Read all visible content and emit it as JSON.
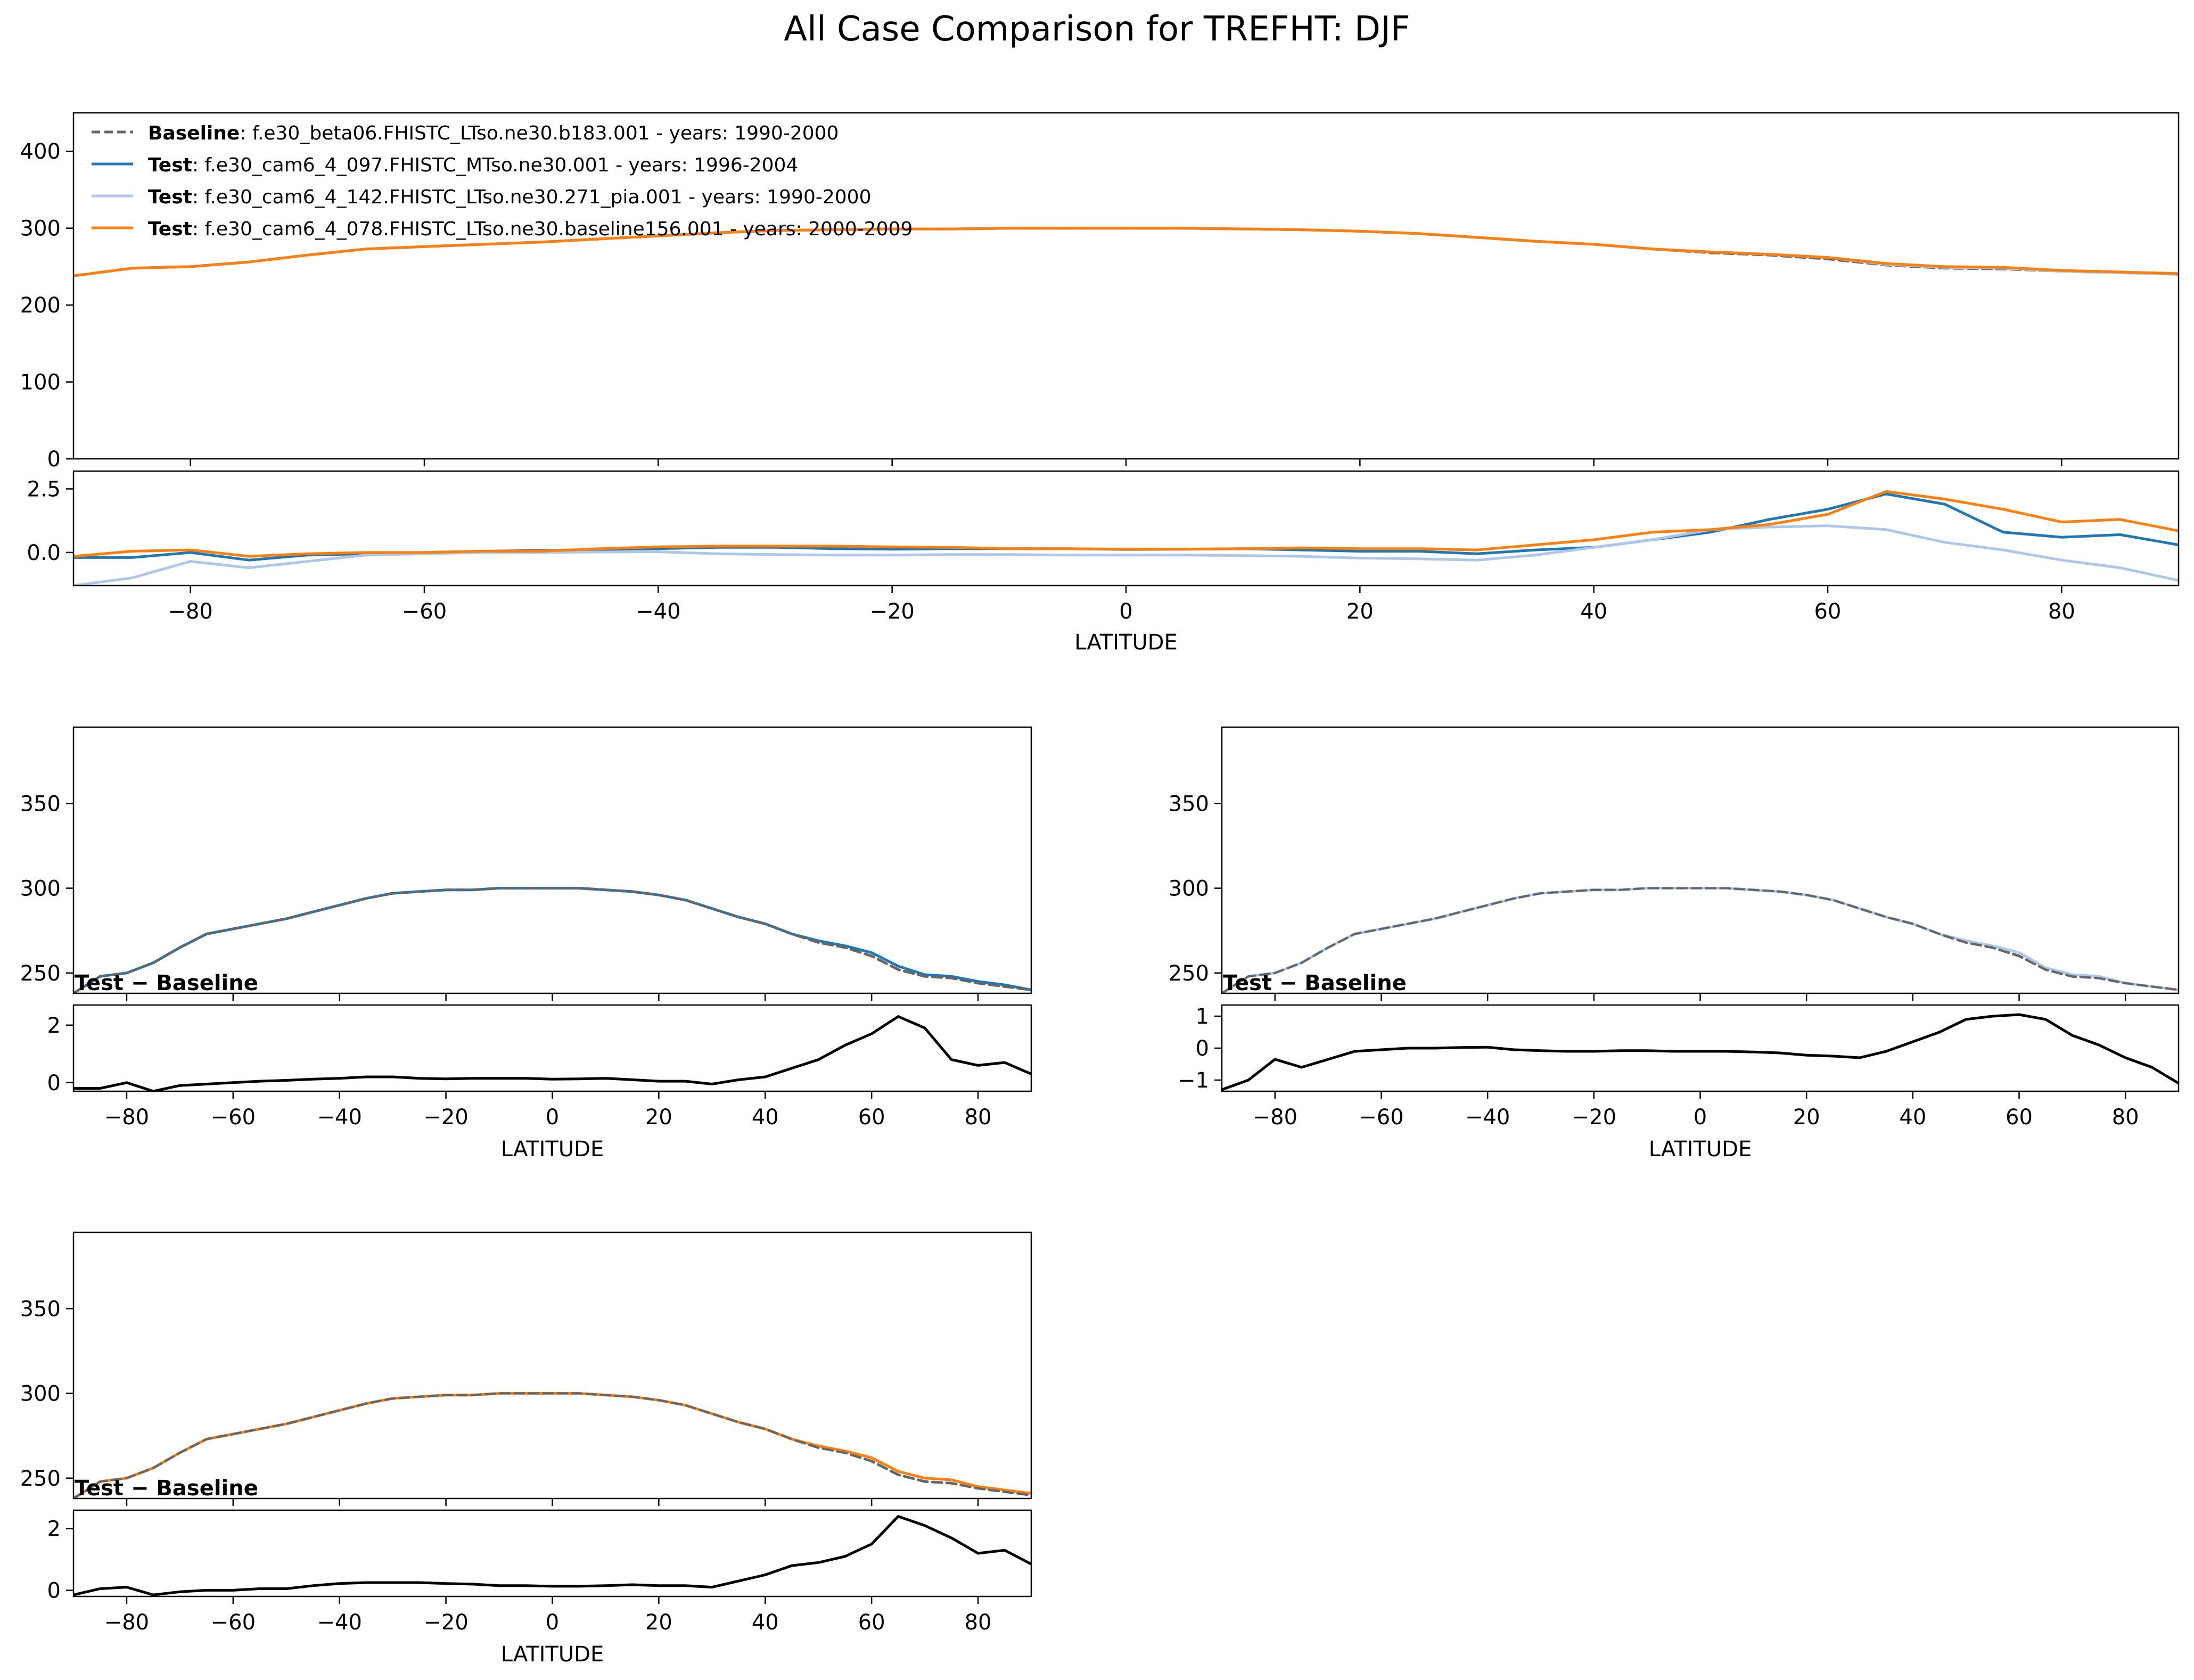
{
  "title": "All Case Comparison for TREFHT: DJF",
  "colors": {
    "baseline": "#666666",
    "test1": "#1f77b4",
    "test2": "#aec7e8",
    "test3": "#ff7f0e",
    "diff": "#000000"
  },
  "legend": [
    {
      "bold": "Baseline",
      "text": ": f.e30_beta06.FHISTC_LTso.ne30.b183.001 - years: 1990-2000",
      "color": "#666666",
      "dashed": true
    },
    {
      "bold": "Test",
      "text": ": f.e30_cam6_4_097.FHISTC_MTso.ne30.001 - years: 1996-2004",
      "color": "#1f77b4",
      "dashed": false
    },
    {
      "bold": "Test",
      "text": ": f.e30_cam6_4_142.FHISTC_LTso.ne30.271_pia.001 - years: 1990-2000",
      "color": "#aec7e8",
      "dashed": false
    },
    {
      "bold": "Test",
      "text": ": f.e30_cam6_4_078.FHISTC_LTso.ne30.baseline156.001 - years: 2000-2009",
      "color": "#ff7f0e",
      "dashed": false
    }
  ],
  "diff_label": "Test − Baseline",
  "chart_data": [
    {
      "type": "line",
      "panel": "overview",
      "xlabel": "LATITUDE",
      "xlim": [
        -90,
        90
      ],
      "xticks": [
        -80,
        -60,
        -40,
        -20,
        0,
        20,
        40,
        60,
        80
      ],
      "ylim": [
        0,
        450
      ],
      "yticks": [
        0,
        100,
        200,
        300,
        400
      ],
      "x": [
        -90,
        -85,
        -80,
        -75,
        -70,
        -65,
        -60,
        -55,
        -50,
        -45,
        -40,
        -35,
        -30,
        -25,
        -20,
        -15,
        -10,
        -5,
        0,
        5,
        10,
        15,
        20,
        25,
        30,
        35,
        40,
        45,
        50,
        55,
        60,
        65,
        70,
        75,
        80,
        85,
        90
      ],
      "series": [
        {
          "name": "Baseline",
          "values": [
            238,
            248,
            250,
            256,
            265,
            273,
            276,
            279,
            282,
            286,
            290,
            294,
            297,
            298,
            299,
            299,
            300,
            300,
            300,
            300,
            299,
            298,
            296,
            293,
            288,
            283,
            279,
            273,
            268,
            265,
            260,
            252,
            248,
            247,
            244,
            242,
            240
          ]
        },
        {
          "name": "Test",
          "values": [
            238,
            248,
            250,
            256,
            265,
            273,
            276,
            279,
            282,
            286,
            290,
            294,
            297,
            298,
            299,
            299,
            300,
            300,
            300,
            300,
            299,
            298,
            296,
            293,
            288,
            283,
            279,
            273,
            269,
            266,
            262,
            254,
            249,
            248,
            245,
            243,
            240
          ]
        },
        {
          "name": "Test",
          "values": [
            238,
            248,
            250,
            256,
            265,
            273,
            276,
            279,
            282,
            286,
            290,
            294,
            297,
            298,
            299,
            299,
            300,
            300,
            300,
            300,
            299,
            298,
            296,
            293,
            288,
            283,
            279,
            273,
            269,
            266,
            262,
            253,
            249,
            248,
            244,
            242,
            240
          ]
        },
        {
          "name": "Test",
          "values": [
            238,
            248,
            250,
            256,
            265,
            273,
            276,
            279,
            282,
            286,
            290,
            294,
            297,
            298,
            299,
            299,
            300,
            300,
            300,
            300,
            299,
            298,
            296,
            293,
            288,
            283,
            279,
            273,
            269,
            266,
            262,
            254,
            250,
            249,
            245,
            243,
            241
          ]
        }
      ],
      "diff": {
        "ylim": [
          -1.3,
          3.2
        ],
        "yticks": [
          0.0,
          2.5
        ],
        "ytick_labels": [
          "0.0",
          "2.5"
        ],
        "series": [
          {
            "values": [
              -0.2,
              -0.2,
              0.0,
              -0.3,
              -0.1,
              -0.05,
              0.0,
              0.05,
              0.08,
              0.12,
              0.15,
              0.2,
              0.2,
              0.15,
              0.13,
              0.15,
              0.15,
              0.15,
              0.12,
              0.13,
              0.15,
              0.1,
              0.05,
              0.05,
              -0.05,
              0.1,
              0.2,
              0.5,
              0.8,
              1.3,
              1.7,
              2.3,
              1.9,
              0.8,
              0.6,
              0.7,
              0.3
            ]
          },
          {
            "values": [
              -1.3,
              -1.0,
              -0.35,
              -0.6,
              -0.35,
              -0.1,
              -0.05,
              0.0,
              0.0,
              0.02,
              0.03,
              -0.05,
              -0.08,
              -0.1,
              -0.1,
              -0.08,
              -0.08,
              -0.1,
              -0.1,
              -0.1,
              -0.12,
              -0.15,
              -0.22,
              -0.25,
              -0.3,
              -0.1,
              0.2,
              0.5,
              0.9,
              1.0,
              1.05,
              0.9,
              0.4,
              0.1,
              -0.3,
              -0.6,
              -1.1
            ]
          },
          {
            "values": [
              -0.15,
              0.05,
              0.1,
              -0.15,
              -0.05,
              0.0,
              0.0,
              0.05,
              0.05,
              0.15,
              0.22,
              0.25,
              0.25,
              0.25,
              0.22,
              0.2,
              0.15,
              0.15,
              0.13,
              0.13,
              0.15,
              0.18,
              0.15,
              0.15,
              0.1,
              0.3,
              0.5,
              0.8,
              0.9,
              1.1,
              1.5,
              2.4,
              2.1,
              1.7,
              1.2,
              1.3,
              0.85
            ]
          }
        ]
      }
    },
    {
      "type": "line",
      "panel": "case-1",
      "xlabel": "LATITUDE",
      "xlim": [
        -90,
        90
      ],
      "xticks": [
        -80,
        -60,
        -40,
        -20,
        0,
        20,
        40,
        60,
        80
      ],
      "ylim": [
        238,
        395
      ],
      "yticks": [
        250,
        300,
        350
      ],
      "x": [
        -90,
        -85,
        -80,
        -75,
        -70,
        -65,
        -60,
        -55,
        -50,
        -45,
        -40,
        -35,
        -30,
        -25,
        -20,
        -15,
        -10,
        -5,
        0,
        5,
        10,
        15,
        20,
        25,
        30,
        35,
        40,
        45,
        50,
        55,
        60,
        65,
        70,
        75,
        80,
        85,
        90
      ],
      "series": [
        {
          "name": "Baseline",
          "values": [
            238,
            248,
            250,
            256,
            265,
            273,
            276,
            279,
            282,
            286,
            290,
            294,
            297,
            298,
            299,
            299,
            300,
            300,
            300,
            300,
            299,
            298,
            296,
            293,
            288,
            283,
            279,
            273,
            268,
            265,
            260,
            252,
            248,
            247,
            244,
            242,
            240
          ]
        },
        {
          "name": "Test",
          "values": [
            238,
            248,
            250,
            256,
            265,
            273,
            276,
            279,
            282,
            286,
            290,
            294,
            297,
            298,
            299,
            299,
            300,
            300,
            300,
            300,
            299,
            298,
            296,
            293,
            288,
            283,
            279,
            273,
            269,
            266,
            262,
            254,
            249,
            248,
            245,
            243,
            240
          ]
        }
      ],
      "diff": {
        "ylim": [
          -0.3,
          2.7
        ],
        "yticks": [
          0,
          2
        ],
        "ytick_labels": [
          "0",
          "2"
        ],
        "series": [
          {
            "values": [
              -0.2,
              -0.2,
              0.0,
              -0.3,
              -0.1,
              -0.05,
              0.0,
              0.05,
              0.08,
              0.12,
              0.15,
              0.2,
              0.2,
              0.15,
              0.13,
              0.15,
              0.15,
              0.15,
              0.12,
              0.13,
              0.15,
              0.1,
              0.05,
              0.05,
              -0.05,
              0.1,
              0.2,
              0.5,
              0.8,
              1.3,
              1.7,
              2.3,
              1.9,
              0.8,
              0.6,
              0.7,
              0.3
            ]
          }
        ]
      }
    },
    {
      "type": "line",
      "panel": "case-2",
      "xlabel": "LATITUDE",
      "xlim": [
        -90,
        90
      ],
      "xticks": [
        -80,
        -60,
        -40,
        -20,
        0,
        20,
        40,
        60,
        80
      ],
      "ylim": [
        238,
        395
      ],
      "yticks": [
        250,
        300,
        350
      ],
      "x": [
        -90,
        -85,
        -80,
        -75,
        -70,
        -65,
        -60,
        -55,
        -50,
        -45,
        -40,
        -35,
        -30,
        -25,
        -20,
        -15,
        -10,
        -5,
        0,
        5,
        10,
        15,
        20,
        25,
        30,
        35,
        40,
        45,
        50,
        55,
        60,
        65,
        70,
        75,
        80,
        85,
        90
      ],
      "series": [
        {
          "name": "Baseline",
          "values": [
            238,
            248,
            250,
            256,
            265,
            273,
            276,
            279,
            282,
            286,
            290,
            294,
            297,
            298,
            299,
            299,
            300,
            300,
            300,
            300,
            299,
            298,
            296,
            293,
            288,
            283,
            279,
            273,
            268,
            265,
            260,
            252,
            248,
            247,
            244,
            242,
            240
          ]
        },
        {
          "name": "Test",
          "values": [
            238,
            248,
            250,
            256,
            265,
            273,
            276,
            279,
            282,
            286,
            290,
            294,
            297,
            298,
            299,
            299,
            300,
            300,
            300,
            300,
            299,
            298,
            296,
            293,
            288,
            283,
            279,
            273,
            269,
            266,
            262,
            253,
            249,
            248,
            244,
            242,
            240
          ]
        }
      ],
      "diff": {
        "ylim": [
          -1.35,
          1.35
        ],
        "yticks": [
          -1,
          0,
          1
        ],
        "ytick_labels": [
          "−1",
          "0",
          "1"
        ],
        "series": [
          {
            "values": [
              -1.3,
              -1.0,
              -0.35,
              -0.6,
              -0.35,
              -0.1,
              -0.05,
              0.0,
              0.0,
              0.02,
              0.03,
              -0.05,
              -0.08,
              -0.1,
              -0.1,
              -0.08,
              -0.08,
              -0.1,
              -0.1,
              -0.1,
              -0.12,
              -0.15,
              -0.22,
              -0.25,
              -0.3,
              -0.1,
              0.2,
              0.5,
              0.9,
              1.0,
              1.05,
              0.9,
              0.4,
              0.1,
              -0.3,
              -0.6,
              -1.1
            ]
          }
        ]
      }
    },
    {
      "type": "line",
      "panel": "case-3",
      "xlabel": "LATITUDE",
      "xlim": [
        -90,
        90
      ],
      "xticks": [
        -80,
        -60,
        -40,
        -20,
        0,
        20,
        40,
        60,
        80
      ],
      "ylim": [
        238,
        395
      ],
      "yticks": [
        250,
        300,
        350
      ],
      "x": [
        -90,
        -85,
        -80,
        -75,
        -70,
        -65,
        -60,
        -55,
        -50,
        -45,
        -40,
        -35,
        -30,
        -25,
        -20,
        -15,
        -10,
        -5,
        0,
        5,
        10,
        15,
        20,
        25,
        30,
        35,
        40,
        45,
        50,
        55,
        60,
        65,
        70,
        75,
        80,
        85,
        90
      ],
      "series": [
        {
          "name": "Baseline",
          "values": [
            238,
            248,
            250,
            256,
            265,
            273,
            276,
            279,
            282,
            286,
            290,
            294,
            297,
            298,
            299,
            299,
            300,
            300,
            300,
            300,
            299,
            298,
            296,
            293,
            288,
            283,
            279,
            273,
            268,
            265,
            260,
            252,
            248,
            247,
            244,
            242,
            240
          ]
        },
        {
          "name": "Test",
          "values": [
            238,
            248,
            250,
            256,
            265,
            273,
            276,
            279,
            282,
            286,
            290,
            294,
            297,
            298,
            299,
            299,
            300,
            300,
            300,
            300,
            299,
            298,
            296,
            293,
            288,
            283,
            279,
            273,
            269,
            266,
            262,
            254,
            250,
            249,
            245,
            243,
            241
          ]
        }
      ],
      "diff": {
        "ylim": [
          -0.2,
          2.6
        ],
        "yticks": [
          0,
          2
        ],
        "ytick_labels": [
          "0",
          "2"
        ],
        "series": [
          {
            "values": [
              -0.15,
              0.05,
              0.1,
              -0.15,
              -0.05,
              0.0,
              0.0,
              0.05,
              0.05,
              0.15,
              0.22,
              0.25,
              0.25,
              0.25,
              0.22,
              0.2,
              0.15,
              0.15,
              0.13,
              0.13,
              0.15,
              0.18,
              0.15,
              0.15,
              0.1,
              0.3,
              0.5,
              0.8,
              0.9,
              1.1,
              1.5,
              2.4,
              2.1,
              1.7,
              1.2,
              1.3,
              0.85
            ]
          }
        ]
      }
    }
  ]
}
